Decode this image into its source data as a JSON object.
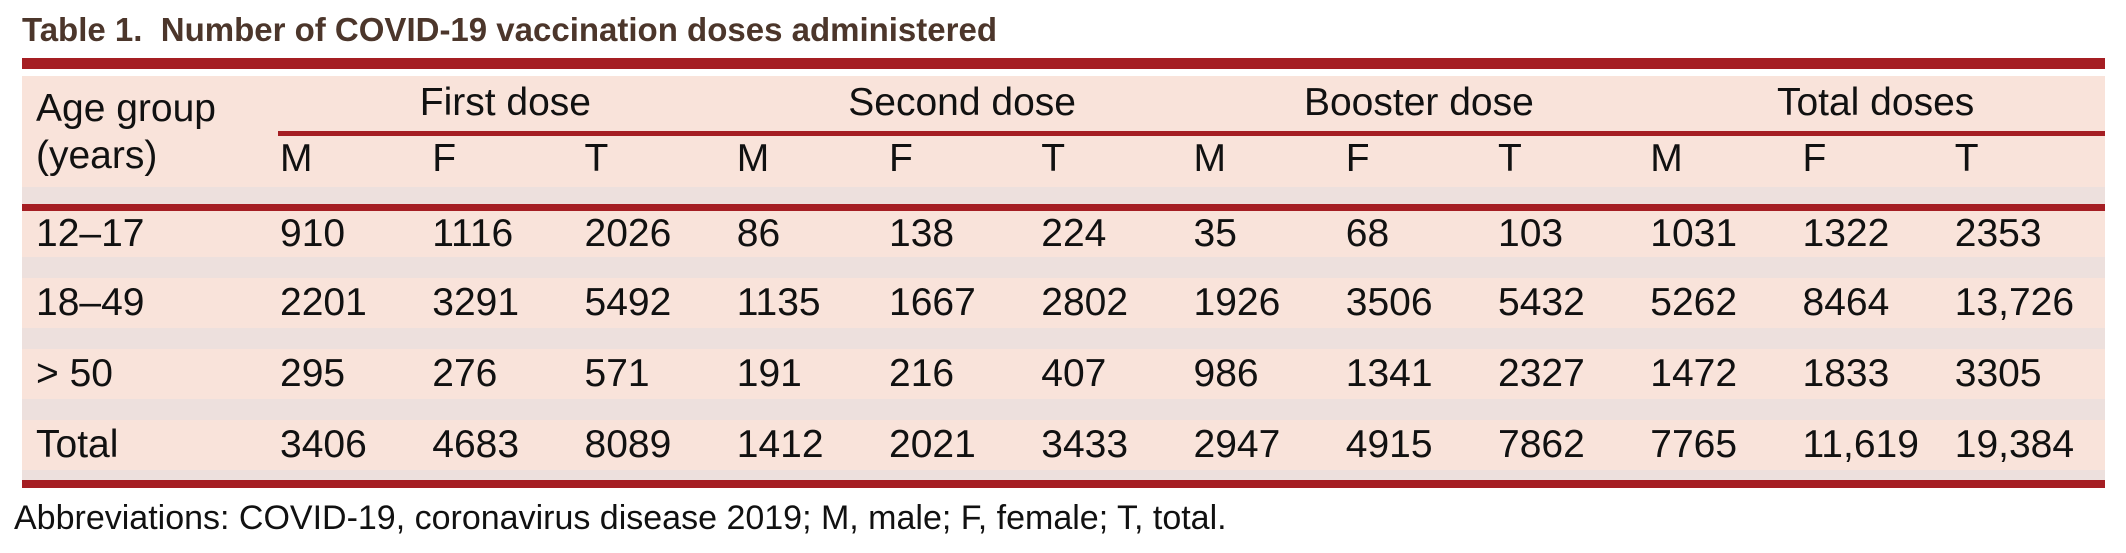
{
  "title": "Table 1.  Number of COVID-19 vaccination doses administered",
  "colors": {
    "accent_red": "#a51e23",
    "title_brown": "#4c362b",
    "row_pink": "#f9e3da",
    "separator_gray": "#ede0dd"
  },
  "table": {
    "age_header": "Age group\n(years)",
    "groups": [
      "First dose",
      "Second dose",
      "Booster dose",
      "Total doses"
    ],
    "sub_headers": [
      "M",
      "F",
      "T"
    ],
    "rows": [
      {
        "age_group": "12–17",
        "doses": [
          [
            "910",
            "1116",
            "2026"
          ],
          [
            "86",
            "138",
            "224"
          ],
          [
            "35",
            "68",
            "103"
          ],
          [
            "1031",
            "1322",
            "2353"
          ]
        ]
      },
      {
        "age_group": "18–49",
        "doses": [
          [
            "2201",
            "3291",
            "5492"
          ],
          [
            "1135",
            "1667",
            "2802"
          ],
          [
            "1926",
            "3506",
            "5432"
          ],
          [
            "5262",
            "8464",
            "13,726"
          ]
        ]
      },
      {
        "age_group": "> 50",
        "doses": [
          [
            "295",
            "276",
            "571"
          ],
          [
            "191",
            "216",
            "407"
          ],
          [
            "986",
            "1341",
            "2327"
          ],
          [
            "1472",
            "1833",
            "3305"
          ]
        ]
      },
      {
        "age_group": "Total",
        "doses": [
          [
            "3406",
            "4683",
            "8089"
          ],
          [
            "1412",
            "2021",
            "3433"
          ],
          [
            "2947",
            "4915",
            "7862"
          ],
          [
            "7765",
            "11,619",
            "19,384"
          ]
        ]
      }
    ]
  },
  "footnote": "Abbreviations: COVID-19, coronavirus disease 2019; M, male; F, female; T, total."
}
